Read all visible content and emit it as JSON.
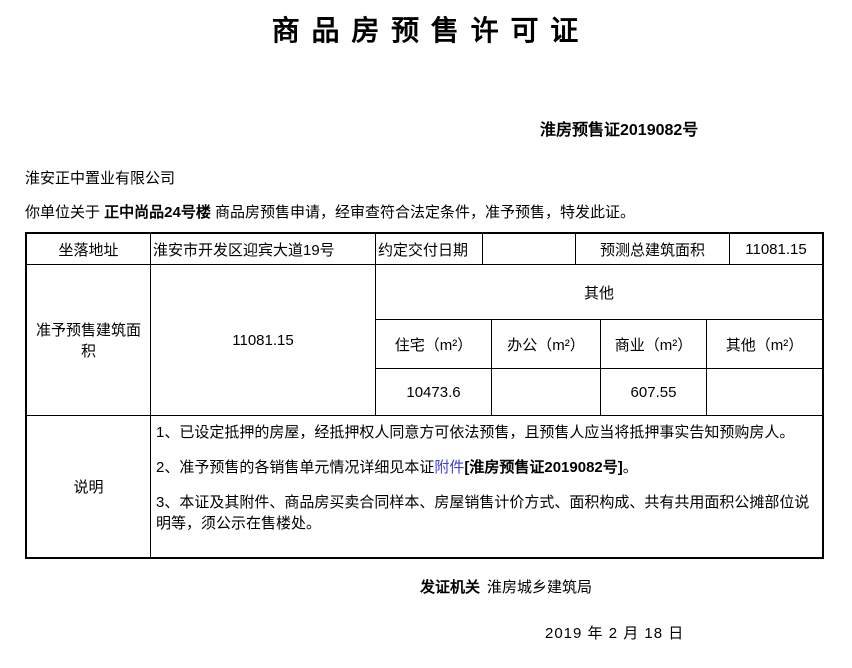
{
  "doc": {
    "title": "商 品 房 预 售 许 可 证",
    "cert_no": "淮房预售证2019082号",
    "company": "淮安正中置业有限公司",
    "intro_prefix": "你单位关于 ",
    "intro_bold": "正中尚品24号楼",
    "intro_suffix": " 商品房预售申请，经审查符合法定条件，准予预售，特发此证。"
  },
  "table": {
    "row1": {
      "address_label": "坐落地址",
      "address_value": "淮安市开发区迎宾大道19号",
      "delivery_label": "约定交付日期",
      "delivery_value": "",
      "total_area_label": "预测总建筑面积",
      "total_area_value": "11081.15"
    },
    "area_section": {
      "label": "准予预售建筑面积",
      "total": "11081.15",
      "other_header": "其他",
      "headers": [
        "住宅（m²）",
        "办公（m²）",
        "商业（m²）",
        "其他（m²）"
      ],
      "values": [
        "10473.6",
        "",
        "607.55",
        ""
      ]
    },
    "notes": {
      "label": "说明",
      "note1": "1、已设定抵押的房屋，经抵押权人同意方可依法预售，且预售人应当将抵押事实告知预购房人。",
      "note2_prefix": "2、准予预售的各销售单元情况详细见本证",
      "note2_link": "附件",
      "note2_bold": "[淮房预售证2019082号]",
      "note2_suffix": "。",
      "note3": "3、本证及其附件、商品房买卖合同样本、房屋销售计价方式、面积构成、共有共用面积公摊部位说明等，须公示在售楼处。"
    }
  },
  "footer": {
    "issuer_label": "发证机关",
    "issuer_value": "淮房城乡建筑局",
    "date": "2019 年 2 月 18 日"
  },
  "colors": {
    "link": "#4141D0",
    "text": "#000000",
    "border": "#000000"
  }
}
